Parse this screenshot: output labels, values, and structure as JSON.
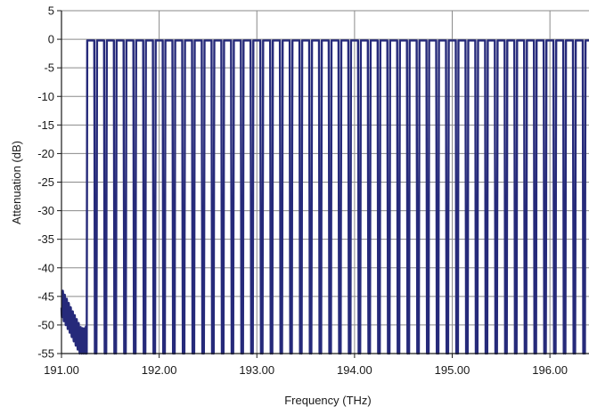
{
  "chart_data": {
    "type": "line",
    "title": "",
    "xlabel": "Frequency (THz)",
    "ylabel": "Attenuation (dB)",
    "xlim": [
      191.0,
      196.4
    ],
    "ylim": [
      -55,
      5
    ],
    "x_ticks": [
      191.0,
      192.0,
      193.0,
      194.0,
      195.0,
      196.0
    ],
    "x_tick_labels": [
      "191.00",
      "192.00",
      "193.00",
      "194.00",
      "195.00",
      "196.00"
    ],
    "y_ticks": [
      5,
      0,
      -5,
      -10,
      -15,
      -20,
      -25,
      -30,
      -35,
      -40,
      -45,
      -50,
      -55
    ],
    "y_tick_labels": [
      "5",
      "0",
      "-5",
      "-10",
      "-15",
      "-20",
      "-25",
      "-30",
      "-35",
      "-40",
      "-45",
      "-50",
      "-55"
    ],
    "grid": true,
    "legend": "none",
    "series_color": "#262a7a",
    "channels": {
      "count": 52,
      "first_center_thz": 191.3,
      "spacing_thz": 0.1,
      "passband_db": -0.2,
      "floor_db": -55,
      "passband_halfwidth_thz": 0.036
    }
  }
}
